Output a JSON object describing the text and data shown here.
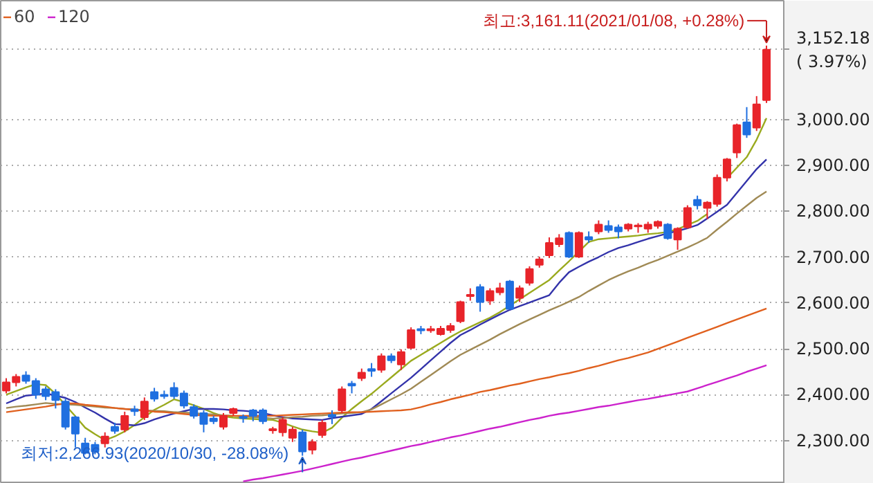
{
  "chart_data": {
    "type": "candlestick",
    "categories": [
      null,
      null,
      null,
      null,
      null,
      null,
      null,
      null,
      null,
      null,
      null,
      null,
      null,
      null,
      null,
      null,
      null,
      null,
      null,
      null,
      null,
      null,
      null,
      null,
      null,
      null,
      null,
      null,
      null,
      null,
      null,
      null,
      null,
      null,
      null,
      null,
      null,
      null,
      null,
      null,
      null,
      null,
      null,
      null,
      null,
      null,
      null,
      null,
      null,
      null,
      null,
      null,
      null,
      null,
      null,
      null,
      null,
      null,
      null,
      null,
      null,
      null,
      null,
      null,
      null,
      null,
      null,
      null,
      null,
      null,
      null,
      null,
      null,
      null,
      null,
      null,
      null,
      null
    ],
    "ohlc": [
      [
        2409,
        2436,
        2403,
        2427
      ],
      [
        2427,
        2445,
        2418,
        2439
      ],
      [
        2442,
        2451,
        2424,
        2430
      ],
      [
        2430,
        2436,
        2391,
        2400
      ],
      [
        2412,
        2418,
        2388,
        2397
      ],
      [
        2406,
        2412,
        2370,
        2388
      ],
      [
        2385,
        2391,
        2324,
        2330
      ],
      [
        2351,
        2354,
        2285,
        2315
      ],
      [
        2294,
        2306,
        2270,
        2273
      ],
      [
        2291,
        2297,
        2270,
        2276
      ],
      [
        2294,
        2318,
        2285,
        2309
      ],
      [
        2330,
        2339,
        2315,
        2321
      ],
      [
        2324,
        2363,
        2318,
        2354
      ],
      [
        2368,
        2376,
        2354,
        2364
      ],
      [
        2351,
        2394,
        2345,
        2385
      ],
      [
        2406,
        2415,
        2385,
        2391
      ],
      [
        2400,
        2409,
        2391,
        2397
      ],
      [
        2415,
        2427,
        2391,
        2397
      ],
      [
        2403,
        2409,
        2370,
        2376
      ],
      [
        2373,
        2379,
        2348,
        2354
      ],
      [
        2360,
        2366,
        2318,
        2336
      ],
      [
        2348,
        2354,
        2336,
        2342
      ],
      [
        2330,
        2360,
        2324,
        2354
      ],
      [
        2360,
        2372,
        2354,
        2369
      ],
      [
        2352,
        2357,
        2339,
        2349
      ],
      [
        2366,
        2369,
        2342,
        2354
      ],
      [
        2366,
        2370,
        2336,
        2342
      ],
      [
        2322,
        2330,
        2315,
        2325
      ],
      [
        2318,
        2351,
        2309,
        2345
      ],
      [
        2306,
        2330,
        2297,
        2324
      ],
      [
        2318,
        2324,
        2266.93,
        2276
      ],
      [
        2280,
        2303,
        2270,
        2297
      ],
      [
        2312,
        2345,
        2306,
        2339
      ],
      [
        2356,
        2366,
        2336,
        2352
      ],
      [
        2366,
        2418,
        2360,
        2412
      ],
      [
        2424,
        2430,
        2403,
        2420
      ],
      [
        2436,
        2457,
        2430,
        2448
      ],
      [
        2456,
        2469,
        2439,
        2452
      ],
      [
        2454,
        2490,
        2448,
        2484
      ],
      [
        2484,
        2490,
        2469,
        2475
      ],
      [
        2466,
        2499,
        2454,
        2493
      ],
      [
        2502,
        2547,
        2499,
        2541
      ],
      [
        2543,
        2550,
        2532,
        2540
      ],
      [
        2540,
        2550,
        2535,
        2543
      ],
      [
        2532,
        2550,
        2529,
        2544
      ],
      [
        2541,
        2556,
        2535,
        2550
      ],
      [
        2560,
        2605,
        2556,
        2602
      ],
      [
        2615,
        2632,
        2605,
        2618
      ],
      [
        2635,
        2641,
        2581,
        2602
      ],
      [
        2605,
        2632,
        2596,
        2626
      ],
      [
        2623,
        2644,
        2617,
        2632
      ],
      [
        2647,
        2650,
        2587,
        2587
      ],
      [
        2611,
        2638,
        2602,
        2632
      ],
      [
        2644,
        2680,
        2638,
        2674
      ],
      [
        2683,
        2701,
        2677,
        2695
      ],
      [
        2704,
        2743,
        2698,
        2731
      ],
      [
        2728,
        2750,
        2722,
        2741
      ],
      [
        2753,
        2756,
        2698,
        2701
      ],
      [
        2701,
        2756,
        2698,
        2753
      ],
      [
        2744,
        2756,
        2731,
        2738
      ],
      [
        2756,
        2780,
        2750,
        2771
      ],
      [
        2768,
        2780,
        2753,
        2759
      ],
      [
        2765,
        2771,
        2741,
        2756
      ],
      [
        2762,
        2774,
        2756,
        2771
      ],
      [
        2767,
        2774,
        2753,
        2769
      ],
      [
        2762,
        2777,
        2753,
        2771
      ],
      [
        2768,
        2780,
        2762,
        2777
      ],
      [
        2771,
        2774,
        2738,
        2741
      ],
      [
        2738,
        2765,
        2716,
        2762
      ],
      [
        2765,
        2813,
        2762,
        2807
      ],
      [
        2825,
        2834,
        2804,
        2813
      ],
      [
        2807,
        2822,
        2783,
        2819
      ],
      [
        2816,
        2880,
        2810,
        2873
      ],
      [
        2873,
        2916,
        2865,
        2913
      ],
      [
        2928,
        2991,
        2916,
        2988
      ],
      [
        2994,
        3027,
        2960,
        2967
      ],
      [
        2982,
        3051,
        2975,
        3033
      ],
      [
        3042,
        3161.11,
        3036,
        3152.18
      ]
    ],
    "colors": [
      "#e8242a",
      "#e8242a",
      "#1f6fe0",
      "#1f6fe0",
      "#1f6fe0",
      "#1f6fe0",
      "#1f6fe0",
      "#1f6fe0",
      "#1f6fe0",
      "#1f6fe0",
      "#e8242a",
      "#1f6fe0",
      "#e8242a",
      "#1f6fe0",
      "#e8242a",
      "#1f6fe0",
      "#1f6fe0",
      "#1f6fe0",
      "#1f6fe0",
      "#1f6fe0",
      "#1f6fe0",
      "#1f6fe0",
      "#e8242a",
      "#e8242a",
      "#1f6fe0",
      "#1f6fe0",
      "#1f6fe0",
      "#e8242a",
      "#e8242a",
      "#e8242a",
      "#1f6fe0",
      "#e8242a",
      "#e8242a",
      "#1f6fe0",
      "#e8242a",
      "#1f6fe0",
      "#e8242a",
      "#1f6fe0",
      "#e8242a",
      "#1f6fe0",
      "#e8242a",
      "#e8242a",
      "#1f6fe0",
      "#e8242a",
      "#e8242a",
      "#e8242a",
      "#e8242a",
      "#e8242a",
      "#1f6fe0",
      "#e8242a",
      "#e8242a",
      "#1f6fe0",
      "#e8242a",
      "#e8242a",
      "#e8242a",
      "#e8242a",
      "#e8242a",
      "#1f6fe0",
      "#e8242a",
      "#1f6fe0",
      "#e8242a",
      "#1f6fe0",
      "#1f6fe0",
      "#e8242a",
      "#e8242a",
      "#e8242a",
      "#e8242a",
      "#1f6fe0",
      "#e8242a",
      "#e8242a",
      "#1f6fe0",
      "#e8242a",
      "#e8242a",
      "#e8242a",
      "#e8242a",
      "#1f6fe0",
      "#e8242a",
      "#e8242a"
    ],
    "series": [
      {
        "type": "line",
        "color": "#9aaa1e",
        "values": [
          2400,
          2408,
          2416,
          2423,
          2421,
          2402,
          2377,
          2353,
          2328,
          2314,
          2301,
          2309,
          2320,
          2334,
          2351,
          2367,
          2378,
          2390,
          2384,
          2377,
          2369,
          2360,
          2353,
          2350,
          2348,
          2347,
          2346,
          2345,
          2339,
          2331,
          2324,
          2320,
          2317,
          2328,
          2350,
          2369,
          2386,
          2402,
          2420,
          2438,
          2456,
          2474,
          2487,
          2500,
          2513,
          2526,
          2538,
          2548,
          2558,
          2568,
          2580,
          2594,
          2608,
          2622,
          2636,
          2650,
          2671,
          2691,
          2712,
          2733,
          2739,
          2741,
          2743,
          2745,
          2747,
          2750,
          2752,
          2755,
          2761,
          2770,
          2779,
          2794,
          null,
          2872,
          2895,
          2918,
          2956,
          3003
        ]
      },
      {
        "type": "line",
        "color": "#3333aa",
        "values": [
          2381,
          2390,
          2398,
          2400,
          2403,
          2398,
          2393,
          2384,
          2372,
          2361,
          2348,
          2336,
          2335,
          2333,
          2338,
          2346,
          2353,
          2359,
          2364,
          2369,
          2369,
          2369,
          2368,
          2366,
          2365,
          2363,
          2360,
          2355,
          2351,
          2348,
          2347,
          2346,
          2345,
          2349,
          2352,
          2355,
          2358,
          2369,
          2386,
          2403,
          2420,
          2437,
          2456,
          2475,
          2494,
          2513,
          2530,
          2541,
          2553,
          2564,
          2575,
          2585,
          2593,
          2601,
          2609,
          2617,
          2644,
          2667,
          2679,
          2690,
          2700,
          2711,
          2720,
          2726,
          2733,
          2740,
          2746,
          2752,
          2757,
          2763,
          2770,
          2784,
          2799,
          2814,
          2840,
          2866,
          2892,
          2913
        ]
      },
      {
        "type": "line",
        "color": "#a08a55",
        "values": [
          2371,
          2374,
          2376,
          2379,
          2382,
          2380,
          2379,
          2378,
          2376,
          2374,
          2372,
          2371,
          2369,
          2368,
          2366,
          2365,
          2364,
          2362,
          2361,
          2360,
          2358,
          2357,
          2355,
          2354,
          2352,
          2351,
          2350,
          2348,
          2349,
          2351,
          2352,
          2354,
          2355,
          2357,
          2359,
          2360,
          2362,
          2368,
          2379,
          2390,
          2401,
          2413,
          2428,
          2443,
          2458,
          2473,
          2487,
          2498,
          2509,
          2520,
          2532,
          2543,
          2554,
          2564,
          2574,
          2584,
          2593,
          2603,
          2613,
          2626,
          2638,
          2650,
          2660,
          2669,
          2677,
          2686,
          2694,
          2703,
          2712,
          2721,
          2731,
          2742,
          2760,
          2777,
          2795,
          2812,
          2829,
          2843
        ]
      },
      {
        "type": "line",
        "name": "60",
        "color": "#e0601e",
        "values": [
          2362,
          2365,
          2368,
          2371,
          2374,
          2378,
          2381,
          2381,
          2378,
          2376,
          2374,
          2371,
          2369,
          2367,
          2365,
          2363,
          2362,
          2360,
          2358,
          2356,
          2355,
          2354,
          2354,
          2354,
          2354,
          2354,
          2354,
          2354,
          2355,
          2356,
          2357,
          2358,
          2359,
          2360,
          2361,
          2362,
          2362,
          2363,
          2364,
          2365,
          2366,
          2368,
          2373,
          2379,
          2384,
          2390,
          2395,
          2400,
          2406,
          2410,
          2415,
          2420,
          2424,
          2429,
          2434,
          2438,
          2443,
          2447,
          2452,
          2458,
          2463,
          2469,
          2475,
          2480,
          2486,
          2492,
          2500,
          2508,
          2516,
          2524,
          2532,
          2540,
          2548,
          2556,
          2564,
          2572,
          2580,
          2588
        ]
      },
      {
        "type": "line",
        "name": "120",
        "color": "#cc22cc",
        "values": [
          null,
          null,
          null,
          null,
          null,
          null,
          null,
          null,
          null,
          null,
          null,
          null,
          null,
          null,
          null,
          null,
          null,
          null,
          null,
          null,
          null,
          null,
          null,
          null,
          2211,
          2215,
          2218,
          2222,
          2226,
          2230,
          2234,
          2239,
          2244,
          2249,
          2254,
          2259,
          2263,
          2268,
          2273,
          2278,
          2283,
          2288,
          2292,
          2297,
          2302,
          2307,
          2311,
          2316,
          2321,
          2326,
          2330,
          2335,
          2340,
          2345,
          2349,
          2354,
          2358,
          2361,
          2365,
          2369,
          2373,
          2376,
          2380,
          2384,
          2388,
          2391,
          2395,
          2399,
          2403,
          2407,
          2414,
          2421,
          2428,
          2435,
          2442,
          2450,
          2457,
          2464
        ]
      }
    ],
    "ylim": [
      2206,
      3259
    ],
    "yticks": [
      {
        "value": 2300,
        "label": "2,300.00"
      },
      {
        "value": 2400,
        "label": "2,400.00"
      },
      {
        "value": 2500,
        "label": "2,500.00"
      },
      {
        "value": 2600,
        "label": "2,600.00"
      },
      {
        "value": 2700,
        "label": "2,700.00"
      },
      {
        "value": 2800,
        "label": "2,800.00"
      },
      {
        "value": 2900,
        "label": "2,900.00"
      },
      {
        "value": 3000,
        "label": "3,000.00"
      }
    ],
    "tick_labels": "y",
    "grid": "y",
    "legend": "top left",
    "annotations": [
      "최고:3,161.11(2021/01/08, +0.28%)",
      "최저:2,266.93(2020/10/30, -28.08%)",
      "3,152.18\n( 3.97%)"
    ]
  }
}
